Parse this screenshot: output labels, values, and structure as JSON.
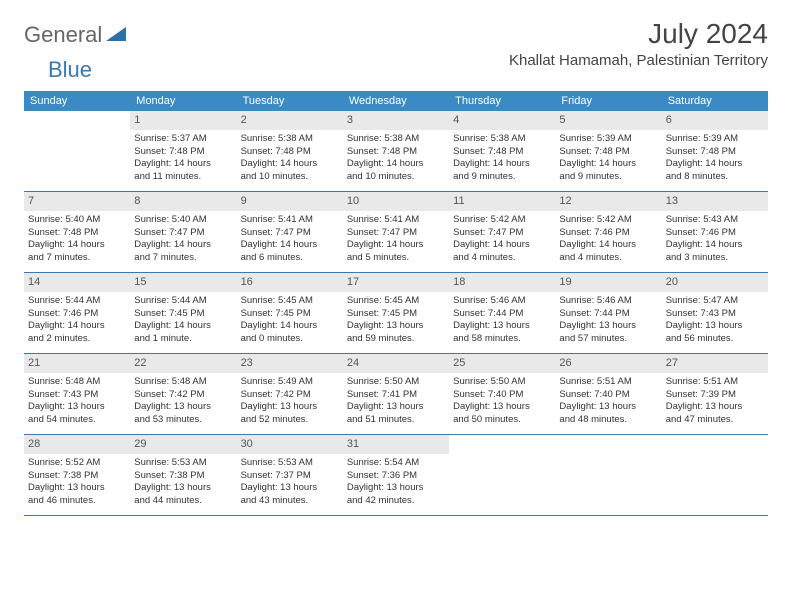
{
  "logo": {
    "word1": "General",
    "word2": "Blue",
    "triangle_color": "#2f6fa8"
  },
  "header": {
    "month_title": "July 2024",
    "location": "Khallat Hamamah, Palestinian Territory"
  },
  "colors": {
    "header_bg": "#3a8ac4",
    "border": "#3a78b5",
    "daynum_bg": "#e9e9e9"
  },
  "weekday_labels": [
    "Sunday",
    "Monday",
    "Tuesday",
    "Wednesday",
    "Thursday",
    "Friday",
    "Saturday"
  ],
  "weeks": [
    [
      {
        "empty": true
      },
      {
        "n": "1",
        "sunrise": "Sunrise: 5:37 AM",
        "sunset": "Sunset: 7:48 PM",
        "dl1": "Daylight: 14 hours",
        "dl2": "and 11 minutes."
      },
      {
        "n": "2",
        "sunrise": "Sunrise: 5:38 AM",
        "sunset": "Sunset: 7:48 PM",
        "dl1": "Daylight: 14 hours",
        "dl2": "and 10 minutes."
      },
      {
        "n": "3",
        "sunrise": "Sunrise: 5:38 AM",
        "sunset": "Sunset: 7:48 PM",
        "dl1": "Daylight: 14 hours",
        "dl2": "and 10 minutes."
      },
      {
        "n": "4",
        "sunrise": "Sunrise: 5:38 AM",
        "sunset": "Sunset: 7:48 PM",
        "dl1": "Daylight: 14 hours",
        "dl2": "and 9 minutes."
      },
      {
        "n": "5",
        "sunrise": "Sunrise: 5:39 AM",
        "sunset": "Sunset: 7:48 PM",
        "dl1": "Daylight: 14 hours",
        "dl2": "and 9 minutes."
      },
      {
        "n": "6",
        "sunrise": "Sunrise: 5:39 AM",
        "sunset": "Sunset: 7:48 PM",
        "dl1": "Daylight: 14 hours",
        "dl2": "and 8 minutes."
      }
    ],
    [
      {
        "n": "7",
        "sunrise": "Sunrise: 5:40 AM",
        "sunset": "Sunset: 7:48 PM",
        "dl1": "Daylight: 14 hours",
        "dl2": "and 7 minutes."
      },
      {
        "n": "8",
        "sunrise": "Sunrise: 5:40 AM",
        "sunset": "Sunset: 7:47 PM",
        "dl1": "Daylight: 14 hours",
        "dl2": "and 7 minutes."
      },
      {
        "n": "9",
        "sunrise": "Sunrise: 5:41 AM",
        "sunset": "Sunset: 7:47 PM",
        "dl1": "Daylight: 14 hours",
        "dl2": "and 6 minutes."
      },
      {
        "n": "10",
        "sunrise": "Sunrise: 5:41 AM",
        "sunset": "Sunset: 7:47 PM",
        "dl1": "Daylight: 14 hours",
        "dl2": "and 5 minutes."
      },
      {
        "n": "11",
        "sunrise": "Sunrise: 5:42 AM",
        "sunset": "Sunset: 7:47 PM",
        "dl1": "Daylight: 14 hours",
        "dl2": "and 4 minutes."
      },
      {
        "n": "12",
        "sunrise": "Sunrise: 5:42 AM",
        "sunset": "Sunset: 7:46 PM",
        "dl1": "Daylight: 14 hours",
        "dl2": "and 4 minutes."
      },
      {
        "n": "13",
        "sunrise": "Sunrise: 5:43 AM",
        "sunset": "Sunset: 7:46 PM",
        "dl1": "Daylight: 14 hours",
        "dl2": "and 3 minutes."
      }
    ],
    [
      {
        "n": "14",
        "sunrise": "Sunrise: 5:44 AM",
        "sunset": "Sunset: 7:46 PM",
        "dl1": "Daylight: 14 hours",
        "dl2": "and 2 minutes."
      },
      {
        "n": "15",
        "sunrise": "Sunrise: 5:44 AM",
        "sunset": "Sunset: 7:45 PM",
        "dl1": "Daylight: 14 hours",
        "dl2": "and 1 minute."
      },
      {
        "n": "16",
        "sunrise": "Sunrise: 5:45 AM",
        "sunset": "Sunset: 7:45 PM",
        "dl1": "Daylight: 14 hours",
        "dl2": "and 0 minutes."
      },
      {
        "n": "17",
        "sunrise": "Sunrise: 5:45 AM",
        "sunset": "Sunset: 7:45 PM",
        "dl1": "Daylight: 13 hours",
        "dl2": "and 59 minutes."
      },
      {
        "n": "18",
        "sunrise": "Sunrise: 5:46 AM",
        "sunset": "Sunset: 7:44 PM",
        "dl1": "Daylight: 13 hours",
        "dl2": "and 58 minutes."
      },
      {
        "n": "19",
        "sunrise": "Sunrise: 5:46 AM",
        "sunset": "Sunset: 7:44 PM",
        "dl1": "Daylight: 13 hours",
        "dl2": "and 57 minutes."
      },
      {
        "n": "20",
        "sunrise": "Sunrise: 5:47 AM",
        "sunset": "Sunset: 7:43 PM",
        "dl1": "Daylight: 13 hours",
        "dl2": "and 56 minutes."
      }
    ],
    [
      {
        "n": "21",
        "sunrise": "Sunrise: 5:48 AM",
        "sunset": "Sunset: 7:43 PM",
        "dl1": "Daylight: 13 hours",
        "dl2": "and 54 minutes."
      },
      {
        "n": "22",
        "sunrise": "Sunrise: 5:48 AM",
        "sunset": "Sunset: 7:42 PM",
        "dl1": "Daylight: 13 hours",
        "dl2": "and 53 minutes."
      },
      {
        "n": "23",
        "sunrise": "Sunrise: 5:49 AM",
        "sunset": "Sunset: 7:42 PM",
        "dl1": "Daylight: 13 hours",
        "dl2": "and 52 minutes."
      },
      {
        "n": "24",
        "sunrise": "Sunrise: 5:50 AM",
        "sunset": "Sunset: 7:41 PM",
        "dl1": "Daylight: 13 hours",
        "dl2": "and 51 minutes."
      },
      {
        "n": "25",
        "sunrise": "Sunrise: 5:50 AM",
        "sunset": "Sunset: 7:40 PM",
        "dl1": "Daylight: 13 hours",
        "dl2": "and 50 minutes."
      },
      {
        "n": "26",
        "sunrise": "Sunrise: 5:51 AM",
        "sunset": "Sunset: 7:40 PM",
        "dl1": "Daylight: 13 hours",
        "dl2": "and 48 minutes."
      },
      {
        "n": "27",
        "sunrise": "Sunrise: 5:51 AM",
        "sunset": "Sunset: 7:39 PM",
        "dl1": "Daylight: 13 hours",
        "dl2": "and 47 minutes."
      }
    ],
    [
      {
        "n": "28",
        "sunrise": "Sunrise: 5:52 AM",
        "sunset": "Sunset: 7:38 PM",
        "dl1": "Daylight: 13 hours",
        "dl2": "and 46 minutes."
      },
      {
        "n": "29",
        "sunrise": "Sunrise: 5:53 AM",
        "sunset": "Sunset: 7:38 PM",
        "dl1": "Daylight: 13 hours",
        "dl2": "and 44 minutes."
      },
      {
        "n": "30",
        "sunrise": "Sunrise: 5:53 AM",
        "sunset": "Sunset: 7:37 PM",
        "dl1": "Daylight: 13 hours",
        "dl2": "and 43 minutes."
      },
      {
        "n": "31",
        "sunrise": "Sunrise: 5:54 AM",
        "sunset": "Sunset: 7:36 PM",
        "dl1": "Daylight: 13 hours",
        "dl2": "and 42 minutes."
      },
      {
        "empty": true
      },
      {
        "empty": true
      },
      {
        "empty": true
      }
    ]
  ]
}
